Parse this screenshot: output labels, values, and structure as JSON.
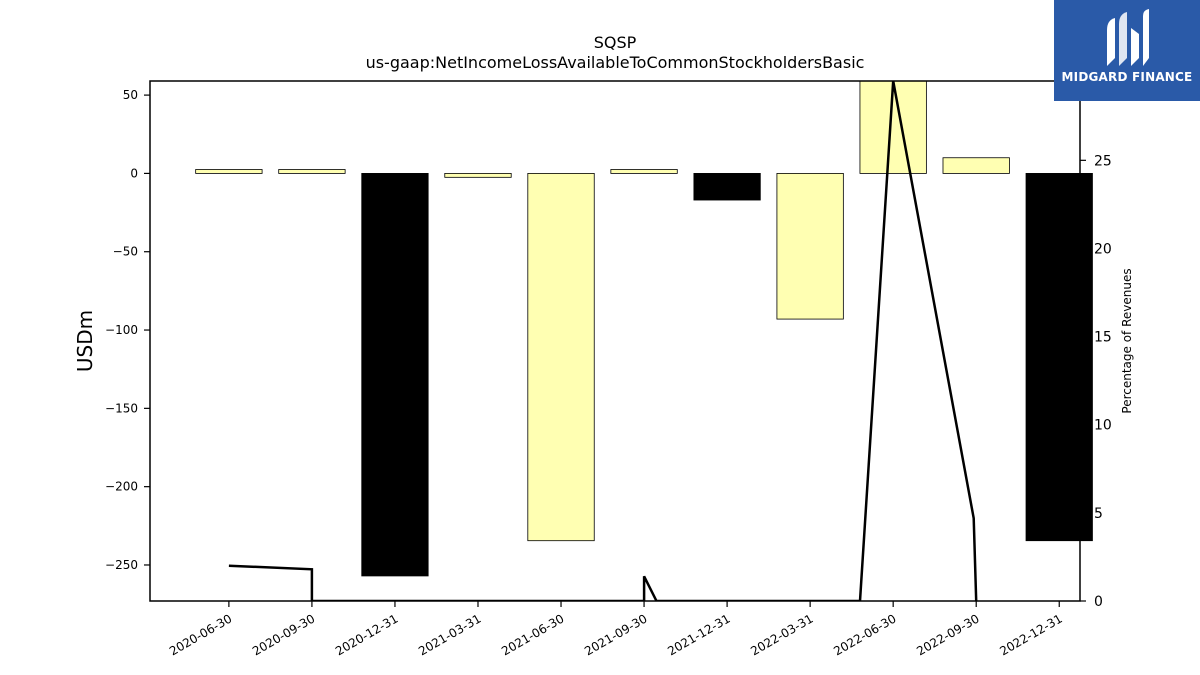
{
  "chart_data": {
    "type": "bar",
    "title": "SQSP",
    "subtitle": "us-gaap:NetIncomeLossAvailableToCommonStockholdersBasic",
    "ylabel": "USDm",
    "ylabel_right": "Percentage of Revenues",
    "categories": [
      "2020-06-30",
      "2020-09-30",
      "2020-12-31",
      "2021-03-31",
      "2021-06-30",
      "2021-09-30",
      "2021-12-31",
      "2022-03-31",
      "2022-06-30",
      "2022-09-30",
      "2022-12-31"
    ],
    "values": [
      2.5,
      2.5,
      -257,
      -2.5,
      -234.5,
      2.5,
      -17,
      -93,
      59,
      10,
      -234.5
    ],
    "bar_colors": [
      "#ffffb2",
      "#ffffb2",
      "#000000",
      "#ffffb2",
      "#ffffb2",
      "#ffffb2",
      "#000000",
      "#ffffb2",
      "#ffffb2",
      "#ffffb2",
      "#000000"
    ],
    "ylim": [
      -273,
      59
    ],
    "yticks": [
      50,
      0,
      -50,
      -100,
      -150,
      -200,
      -250
    ],
    "ytick_labels": [
      "50",
      "0",
      "−50",
      "−100",
      "−150",
      "−200",
      "−250"
    ],
    "line_series": {
      "name": "Percentage of Revenues",
      "points": [
        {
          "x": 0,
          "y": 2.0
        },
        {
          "x": 1,
          "y": 1.8
        },
        {
          "x": 1,
          "y": 0
        },
        {
          "x": 5,
          "y": 0
        },
        {
          "x": 5,
          "y": 1.4
        },
        {
          "x": 5.15,
          "y": 0
        },
        {
          "x": 7.6,
          "y": 0
        },
        {
          "x": 8,
          "y": 29.5
        },
        {
          "x": 8.97,
          "y": 4.7
        },
        {
          "x": 9,
          "y": 0
        }
      ],
      "ylim": [
        0,
        29.5
      ],
      "yticks": [
        0,
        5,
        10,
        15,
        20,
        25
      ],
      "ytick_labels": [
        "0",
        "5",
        "10",
        "15",
        "20",
        "25"
      ]
    },
    "grid": false
  },
  "logo": {
    "text": "MIDGARD FINANCE",
    "bg_color": "#2a5aa8"
  }
}
